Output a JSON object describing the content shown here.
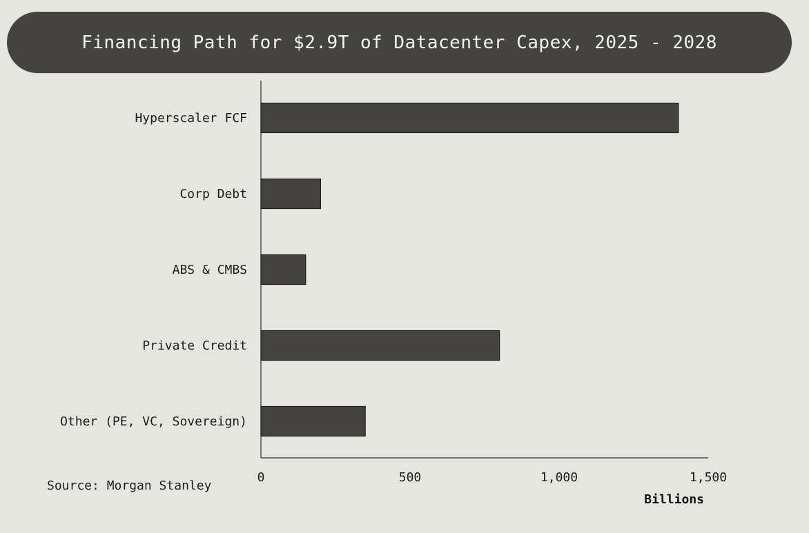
{
  "title": "Financing Path for $2.9T of Datacenter Capex, 2025 - 2028",
  "source": "Source: Morgan Stanley",
  "colors": {
    "background": "#e6e6e0",
    "title_pill": "#444341",
    "bar_fill": "#444341",
    "text": "#1c1c1c"
  },
  "chart_data": {
    "type": "bar",
    "orientation": "horizontal",
    "categories": [
      "Hyperscaler FCF",
      "Corp Debt",
      "ABS & CMBS",
      "Private Credit",
      "Other (PE, VC, Sovereign)"
    ],
    "values": [
      1400,
      200,
      150,
      800,
      350
    ],
    "xlabel": "Billions",
    "xlim": [
      0,
      1500
    ],
    "x_ticks": [
      0,
      500,
      1000,
      1500
    ],
    "x_tick_labels": [
      "0",
      "500",
      "1,000",
      "1,500"
    ],
    "grid": false
  }
}
